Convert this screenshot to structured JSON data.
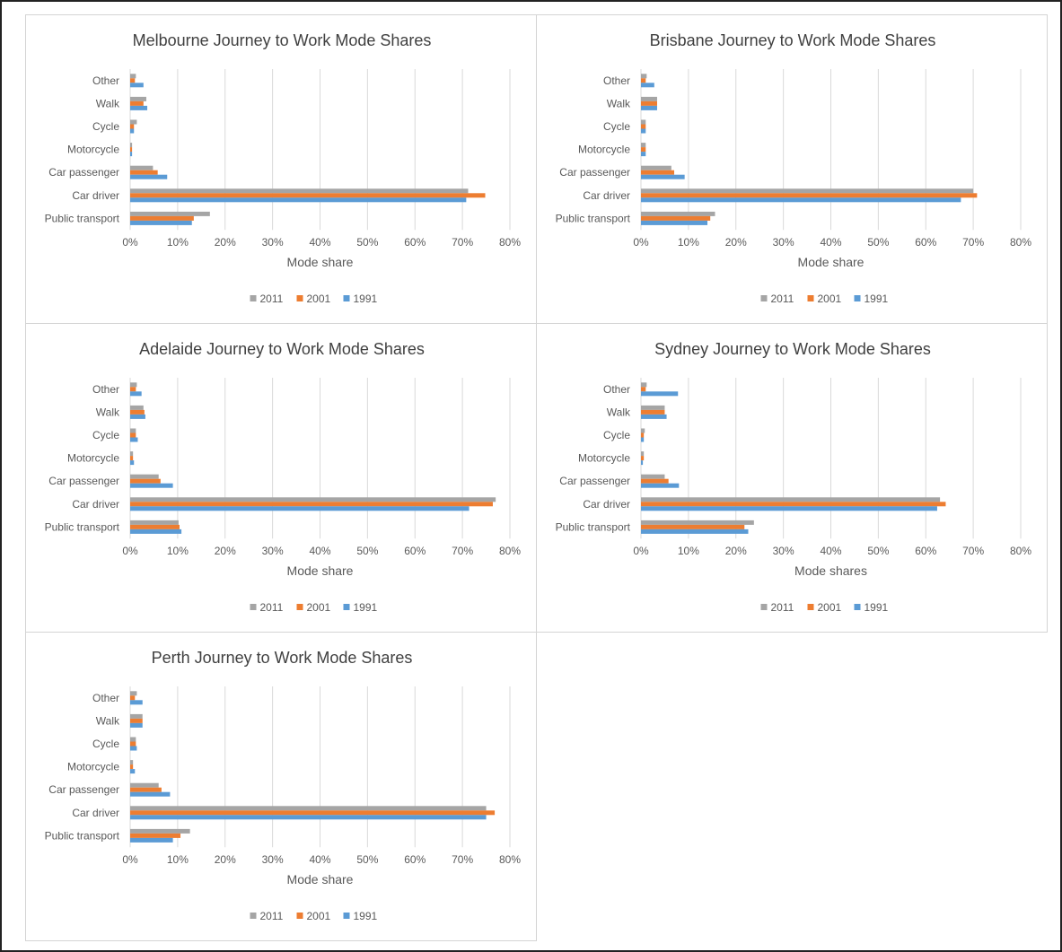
{
  "colors": {
    "2011": "#a5a5a5",
    "2001": "#ed7d31",
    "1991": "#5b9bd5",
    "grid": "#d9d9d9",
    "text": "#595959",
    "title": "#404040"
  },
  "chart_data": [
    {
      "type": "bar",
      "orientation": "horizontal",
      "title": "Melbourne Journey to Work Mode Shares",
      "xlabel": "Mode share",
      "ylabel": "",
      "categories": [
        "Other",
        "Walk",
        "Cycle",
        "Motorcycle",
        "Car passenger",
        "Car driver",
        "Public transport"
      ],
      "xlim": [
        0,
        80
      ],
      "x_ticks": [
        "0%",
        "10%",
        "20%",
        "30%",
        "40%",
        "50%",
        "60%",
        "70%",
        "80%"
      ],
      "grid": true,
      "legend_position": "bottom",
      "series": [
        {
          "name": "2011",
          "values": [
            1.2,
            3.4,
            1.4,
            0.4,
            4.8,
            71.2,
            16.8
          ]
        },
        {
          "name": "2001",
          "values": [
            1.0,
            2.8,
            0.8,
            0.4,
            5.8,
            74.8,
            13.4
          ]
        },
        {
          "name": "1991",
          "values": [
            2.8,
            3.6,
            0.8,
            0.4,
            7.8,
            70.8,
            13.0
          ]
        }
      ]
    },
    {
      "type": "bar",
      "orientation": "horizontal",
      "title": "Brisbane Journey to Work Mode Shares",
      "xlabel": "Mode share",
      "ylabel": "",
      "categories": [
        "Other",
        "Walk",
        "Cycle",
        "Motorcycle",
        "Car passenger",
        "Car driver",
        "Public transport"
      ],
      "xlim": [
        0,
        80
      ],
      "x_ticks": [
        "0%",
        "10%",
        "20%",
        "30%",
        "40%",
        "50%",
        "60%",
        "70%",
        "80%"
      ],
      "grid": true,
      "legend_position": "bottom",
      "series": [
        {
          "name": "2011",
          "values": [
            1.2,
            3.4,
            1.0,
            1.0,
            6.4,
            70.0,
            15.6
          ]
        },
        {
          "name": "2001",
          "values": [
            1.0,
            3.4,
            1.0,
            1.0,
            7.0,
            70.8,
            14.6
          ]
        },
        {
          "name": "1991",
          "values": [
            2.8,
            3.4,
            1.0,
            1.0,
            9.2,
            67.4,
            14.0
          ]
        }
      ]
    },
    {
      "type": "bar",
      "orientation": "horizontal",
      "title": "Adelaide Journey to Work Mode Shares",
      "xlabel": "Mode share",
      "ylabel": "",
      "categories": [
        "Other",
        "Walk",
        "Cycle",
        "Motorcycle",
        "Car passenger",
        "Car driver",
        "Public transport"
      ],
      "xlim": [
        0,
        80
      ],
      "x_ticks": [
        "0%",
        "10%",
        "20%",
        "30%",
        "40%",
        "50%",
        "60%",
        "70%",
        "80%"
      ],
      "grid": true,
      "legend_position": "bottom",
      "series": [
        {
          "name": "2011",
          "values": [
            1.4,
            2.8,
            1.2,
            0.6,
            6.0,
            77.0,
            10.2
          ]
        },
        {
          "name": "2001",
          "values": [
            1.2,
            3.0,
            1.2,
            0.6,
            6.4,
            76.4,
            10.4
          ]
        },
        {
          "name": "1991",
          "values": [
            2.4,
            3.2,
            1.6,
            0.8,
            9.0,
            71.4,
            10.8
          ]
        }
      ]
    },
    {
      "type": "bar",
      "orientation": "horizontal",
      "title": "Sydney Journey to Work Mode Shares",
      "xlabel": "Mode shares",
      "ylabel": "",
      "categories": [
        "Other",
        "Walk",
        "Cycle",
        "Motorcycle",
        "Car passenger",
        "Car driver",
        "Public transport"
      ],
      "xlim": [
        0,
        80
      ],
      "x_ticks": [
        "0%",
        "10%",
        "20%",
        "30%",
        "40%",
        "50%",
        "60%",
        "70%",
        "80%"
      ],
      "grid": true,
      "legend_position": "bottom",
      "series": [
        {
          "name": "2011",
          "values": [
            1.2,
            5.0,
            0.8,
            0.6,
            5.0,
            63.0,
            23.8
          ]
        },
        {
          "name": "2001",
          "values": [
            1.0,
            5.0,
            0.6,
            0.6,
            5.8,
            64.2,
            21.8
          ]
        },
        {
          "name": "1991",
          "values": [
            7.8,
            5.4,
            0.6,
            0.4,
            8.0,
            62.4,
            22.6
          ]
        }
      ]
    },
    {
      "type": "bar",
      "orientation": "horizontal",
      "title": "Perth Journey to Work Mode Shares",
      "xlabel": "Mode share",
      "ylabel": "",
      "categories": [
        "Other",
        "Walk",
        "Cycle",
        "Motorcycle",
        "Car passenger",
        "Car driver",
        "Public transport"
      ],
      "xlim": [
        0,
        80
      ],
      "x_ticks": [
        "0%",
        "10%",
        "20%",
        "30%",
        "40%",
        "50%",
        "60%",
        "70%",
        "80%"
      ],
      "grid": true,
      "legend_position": "bottom",
      "series": [
        {
          "name": "2011",
          "values": [
            1.4,
            2.6,
            1.2,
            0.6,
            6.0,
            75.0,
            12.6
          ]
        },
        {
          "name": "2001",
          "values": [
            1.0,
            2.6,
            1.2,
            0.6,
            6.6,
            76.8,
            10.6
          ]
        },
        {
          "name": "1991",
          "values": [
            2.6,
            2.6,
            1.4,
            1.0,
            8.4,
            75.0,
            9.0
          ]
        }
      ]
    }
  ]
}
